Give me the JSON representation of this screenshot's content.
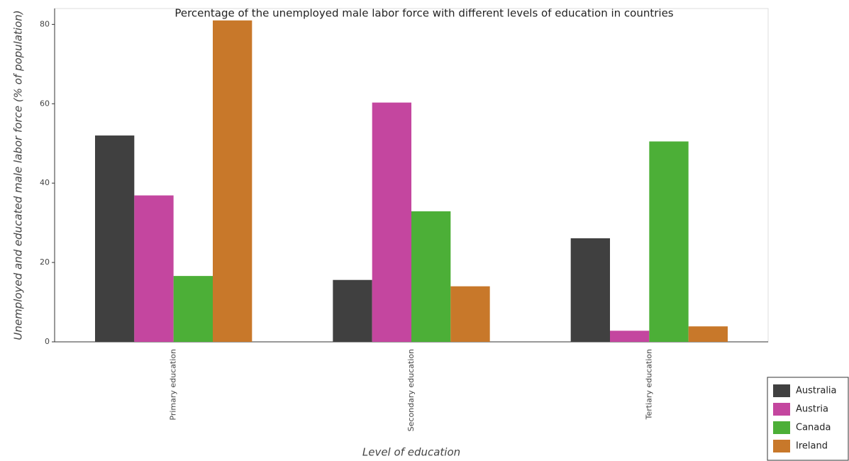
{
  "chart_data": {
    "type": "bar",
    "title": "Percentage of the unemployed male labor force with different levels of education in countries",
    "x_label": "Level of education",
    "y_label": "Unemployed and educated male labor force (% of population)",
    "categories": [
      "Primary education",
      "Secondary education",
      "Tertiary education"
    ],
    "series": [
      {
        "name": "Australia",
        "color": "#404040",
        "values": [
          52,
          15.6,
          26.1
        ]
      },
      {
        "name": "Austria",
        "color": "#c4469f",
        "values": [
          36.9,
          60.3,
          2.8
        ]
      },
      {
        "name": "Canada",
        "color": "#4caf37",
        "values": [
          16.6,
          32.9,
          50.5
        ]
      },
      {
        "name": "Ireland",
        "color": "#c8782a",
        "values": [
          81,
          14,
          3.9
        ]
      }
    ],
    "ylim": [
      0,
      84
    ],
    "yticks": [
      0,
      20,
      40,
      60,
      80
    ],
    "grid": false,
    "legend": "lower right"
  }
}
